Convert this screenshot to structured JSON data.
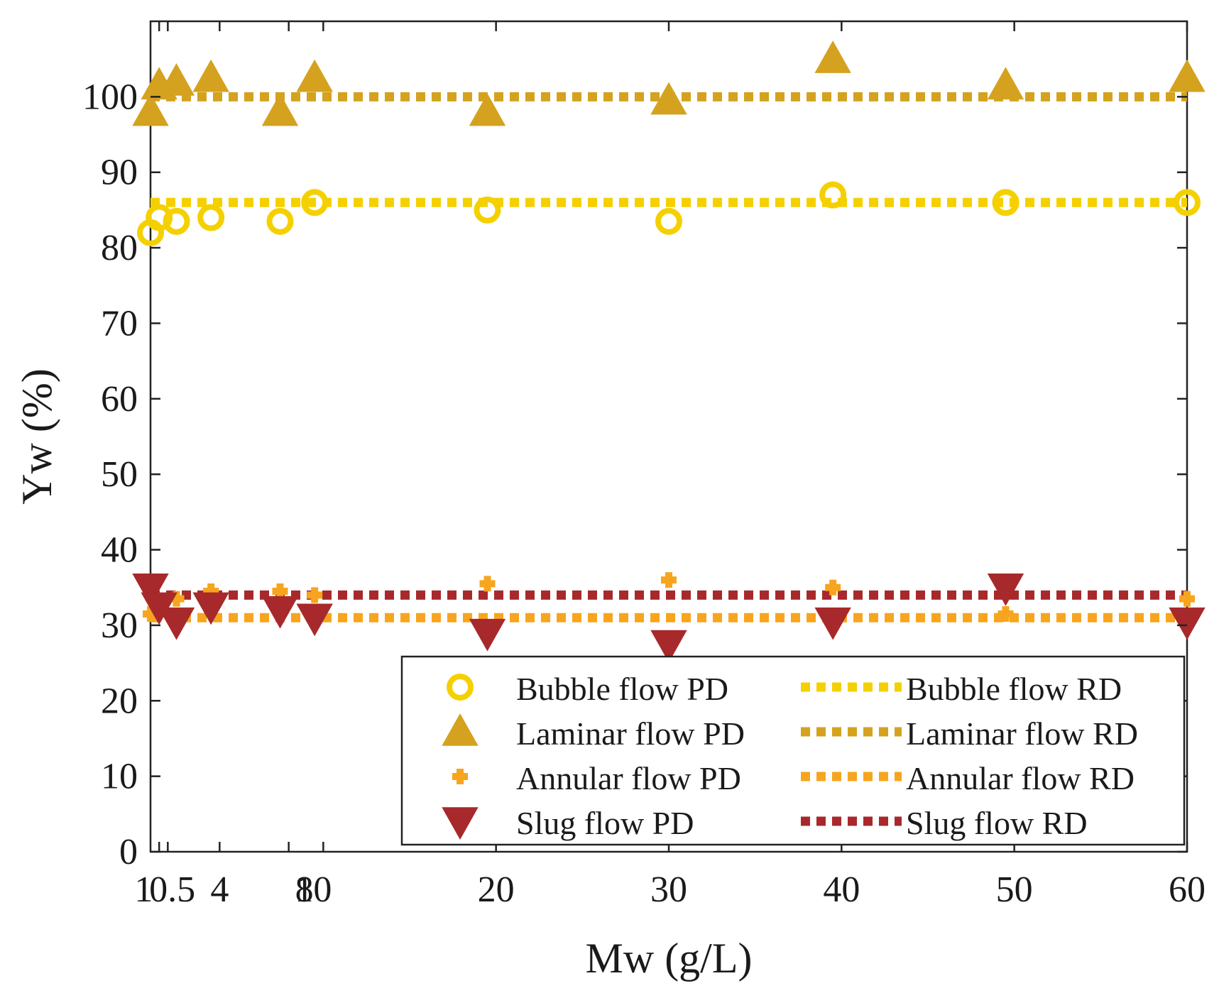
{
  "chart_data": {
    "type": "scatter",
    "xlabel": "Mw (g/L)",
    "ylabel": "Yw (%)",
    "xlim": [
      0,
      60
    ],
    "ylim": [
      0,
      110
    ],
    "xticks": [
      0.5,
      1,
      4,
      8,
      10,
      20,
      30,
      40,
      50,
      60
    ],
    "xtick_labels": [
      "0.5",
      "1",
      "4",
      "8",
      "10",
      "20",
      "30",
      "40",
      "50",
      "60"
    ],
    "yticks": [
      0,
      10,
      20,
      30,
      40,
      50,
      60,
      70,
      80,
      90,
      100
    ],
    "ytick_labels": [
      "0",
      "10",
      "20",
      "30",
      "40",
      "50",
      "60",
      "70",
      "80",
      "90",
      "100"
    ],
    "legend_position": "bottom-right",
    "series": [
      {
        "name": "Bubble flow PD",
        "kind": "points",
        "marker": "circle",
        "color": "#f5d000",
        "x": [
          0,
          0.5,
          1.5,
          3.5,
          7.5,
          9.5,
          19.5,
          30,
          39.5,
          49.5,
          60
        ],
        "y": [
          82,
          84,
          83.5,
          84,
          83.5,
          86,
          85,
          83.5,
          87,
          86,
          86
        ]
      },
      {
        "name": "Laminar flow PD",
        "kind": "points",
        "marker": "triangle-up",
        "color": "#d4a21e",
        "x": [
          0,
          0.5,
          1.5,
          3.5,
          7.5,
          9.5,
          19.5,
          30,
          39.5,
          49.5,
          60
        ],
        "y": [
          98,
          101.5,
          102,
          102.5,
          98,
          102.5,
          98,
          99.5,
          105,
          101.5,
          102.5
        ]
      },
      {
        "name": "Annular flow PD",
        "kind": "points",
        "marker": "plus",
        "color": "#f7a51e",
        "x": [
          0,
          0.5,
          1.5,
          3.5,
          7.5,
          9.5,
          19.5,
          30,
          39.5,
          49.5,
          60
        ],
        "y": [
          31.5,
          32,
          33.5,
          34.5,
          34.5,
          34,
          35.5,
          36,
          35,
          31.5,
          33.5
        ]
      },
      {
        "name": "Slug flow PD",
        "kind": "points",
        "marker": "triangle-down",
        "color": "#a8292b",
        "x": [
          0,
          0.5,
          1.5,
          3.5,
          7.5,
          9.5,
          19.5,
          30,
          39.5,
          49.5,
          60
        ],
        "y": [
          35,
          32.5,
          30.5,
          32.5,
          32,
          31,
          29,
          27.5,
          30.5,
          35,
          30.5
        ]
      },
      {
        "name": "Bubble flow RD",
        "kind": "line",
        "color": "#f5d000",
        "x": [
          0,
          60
        ],
        "y": [
          86,
          86
        ]
      },
      {
        "name": "Laminar flow RD",
        "kind": "line",
        "color": "#d4a21e",
        "x": [
          0,
          60
        ],
        "y": [
          100,
          100
        ]
      },
      {
        "name": "Annular flow RD",
        "kind": "line",
        "color": "#f7a51e",
        "x": [
          0,
          60
        ],
        "y": [
          31,
          31
        ]
      },
      {
        "name": "Slug flow RD",
        "kind": "line",
        "color": "#a8292b",
        "x": [
          0,
          60
        ],
        "y": [
          34,
          34
        ]
      }
    ]
  }
}
